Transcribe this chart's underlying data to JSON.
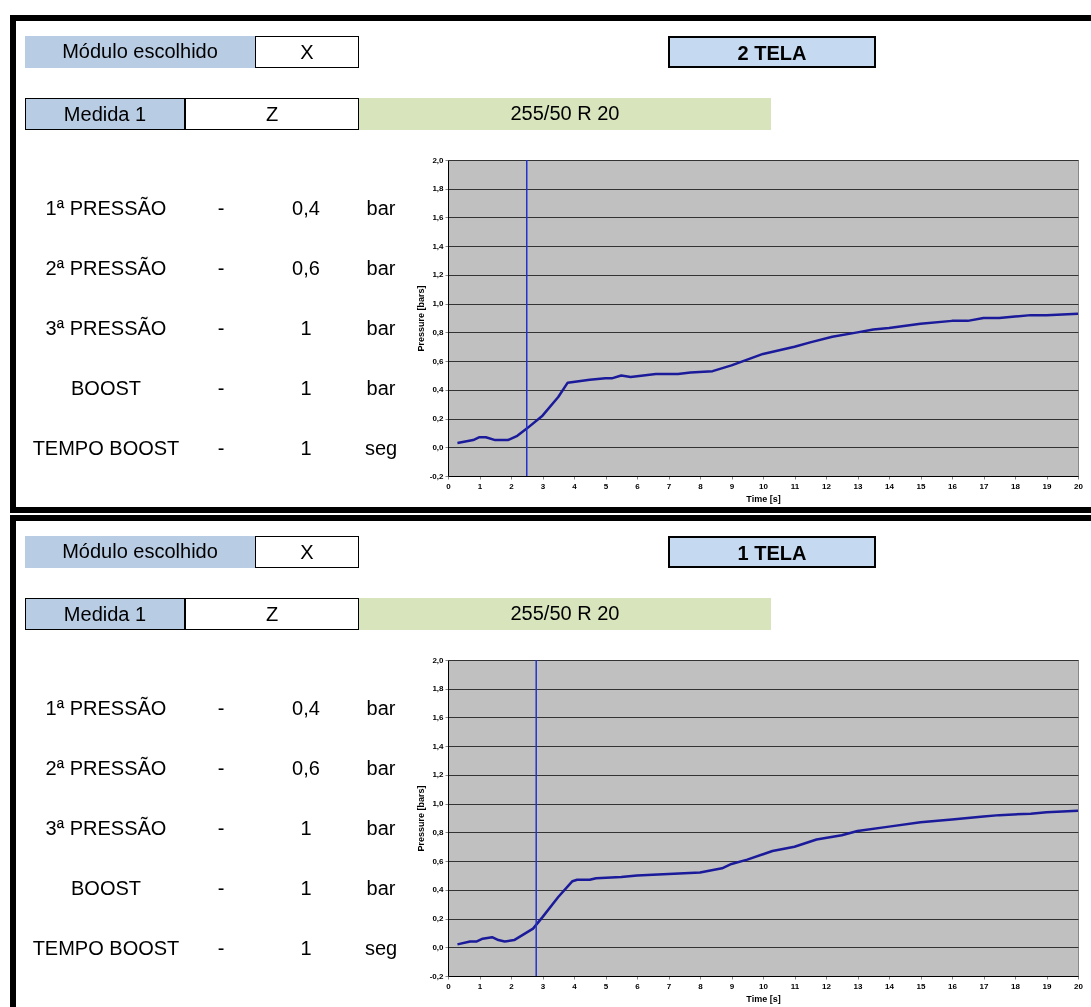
{
  "chart_data": [
    {
      "type": "other",
      "annotations": [
        "Módulo escolhido",
        "X",
        "2 TELA",
        "Medida 1",
        "Z",
        "255/50 R 20",
        "1ª PRESSÃO",
        "-",
        "0,4",
        "bar",
        "2ª PRESSÃO",
        "-",
        "0,6",
        "bar",
        "3ª PRESSÃO",
        "-",
        "1",
        "bar",
        "BOOST",
        "-",
        "1",
        "bar",
        "TEMPO BOOST",
        "-",
        "1",
        "seg"
      ]
    },
    {
      "type": "line",
      "xlabel": "Time [s]",
      "ylabel": "Pressure [bars]",
      "xlim": [
        0,
        20
      ],
      "xticks": [
        0,
        1,
        2,
        3,
        4,
        5,
        6,
        7,
        8,
        9,
        10,
        11,
        12,
        13,
        14,
        15,
        16,
        17,
        18,
        19,
        20
      ],
      "ylim": [
        -0.2,
        2
      ],
      "yticks": [
        {
          "value": -0.2,
          "label": "-0,2"
        },
        {
          "value": 0,
          "label": "0,0"
        },
        {
          "value": 0.2,
          "label": "0,2"
        },
        {
          "value": 0.4,
          "label": "0,4"
        },
        {
          "value": 0.6,
          "label": "0,6"
        },
        {
          "value": 0.8,
          "label": "0,8"
        },
        {
          "value": 1,
          "label": "1,0"
        },
        {
          "value": 1.2,
          "label": "1,2"
        },
        {
          "value": 1.4,
          "label": "1,4"
        },
        {
          "value": 1.6,
          "label": "1,6"
        },
        {
          "value": 1.8,
          "label": "1,8"
        },
        {
          "value": 2,
          "label": "2,0"
        }
      ],
      "grid": "y",
      "marker": "none",
      "line_style": "solid",
      "ref_lines": [
        {
          "axis": "x",
          "value": 2.5,
          "color": "#2233cc"
        }
      ],
      "series": [
        {
          "color": "#1a1a9a",
          "x": [
            0.3,
            0.8,
            1,
            1.2,
            1.5,
            1.9,
            2.2,
            2.5,
            3,
            3.5,
            3.8,
            4.5,
            5,
            5.2,
            5.5,
            5.8,
            6.2,
            6.6,
            7,
            7.3,
            7.7,
            8.4,
            9,
            9.5,
            10,
            11,
            11.5,
            12.2,
            13,
            13.5,
            14,
            15,
            16,
            16.5,
            17,
            17.5,
            18,
            18.5,
            19,
            20
          ],
          "values": [
            0.03,
            0.05,
            0.07,
            0.07,
            0.05,
            0.05,
            0.08,
            0.13,
            0.22,
            0.35,
            0.45,
            0.47,
            0.48,
            0.48,
            0.5,
            0.49,
            0.5,
            0.51,
            0.51,
            0.51,
            0.52,
            0.53,
            0.57,
            0.61,
            0.65,
            0.7,
            0.73,
            0.77,
            0.8,
            0.82,
            0.83,
            0.86,
            0.88,
            0.88,
            0.9,
            0.9,
            0.91,
            0.92,
            0.92,
            0.93
          ]
        }
      ]
    },
    {
      "type": "other",
      "annotations": [
        "Módulo escolhido",
        "X",
        "1 TELA",
        "Medida 1",
        "Z",
        "255/50 R 20",
        "1ª PRESSÃO",
        "-",
        "0,4",
        "bar",
        "2ª PRESSÃO",
        "-",
        "0,6",
        "bar",
        "3ª PRESSÃO",
        "-",
        "1",
        "bar",
        "BOOST",
        "-",
        "1",
        "bar",
        "TEMPO BOOST",
        "-",
        "1",
        "seg"
      ]
    },
    {
      "type": "line",
      "xlabel": "Time [s]",
      "ylabel": "Pressure [bars]",
      "xlim": [
        0,
        20
      ],
      "xticks": [
        0,
        1,
        2,
        3,
        4,
        5,
        6,
        7,
        8,
        9,
        10,
        11,
        12,
        13,
        14,
        15,
        16,
        17,
        18,
        19,
        20
      ],
      "ylim": [
        -0.2,
        2
      ],
      "yticks": [
        {
          "value": -0.2,
          "label": "-0,2"
        },
        {
          "value": 0,
          "label": "0,0"
        },
        {
          "value": 0.2,
          "label": "0,2"
        },
        {
          "value": 0.4,
          "label": "0,4"
        },
        {
          "value": 0.6,
          "label": "0,6"
        },
        {
          "value": 0.8,
          "label": "0,8"
        },
        {
          "value": 1,
          "label": "1,0"
        },
        {
          "value": 1.2,
          "label": "1,2"
        },
        {
          "value": 1.4,
          "label": "1,4"
        },
        {
          "value": 1.6,
          "label": "1,6"
        },
        {
          "value": 1.8,
          "label": "1,8"
        },
        {
          "value": 2,
          "label": "2,0"
        }
      ],
      "grid": "y",
      "marker": "none",
      "line_style": "solid",
      "ref_lines": [
        {
          "axis": "x",
          "value": 2.8,
          "color": "#2233cc"
        }
      ],
      "series": [
        {
          "color": "#1a1a9a",
          "x": [
            0.3,
            0.7,
            0.9,
            1.1,
            1.4,
            1.6,
            1.8,
            2.1,
            2.4,
            2.7,
            3,
            3.5,
            3.95,
            4.1,
            4.5,
            4.7,
            5.5,
            6,
            7,
            8,
            8.7,
            9,
            9.5,
            10.3,
            11,
            11.7,
            12.5,
            13,
            14,
            15,
            16,
            17,
            17.5,
            18.5,
            19,
            20
          ],
          "values": [
            0.02,
            0.04,
            0.04,
            0.06,
            0.07,
            0.05,
            0.04,
            0.05,
            0.09,
            0.13,
            0.21,
            0.35,
            0.46,
            0.47,
            0.47,
            0.48,
            0.49,
            0.5,
            0.51,
            0.52,
            0.55,
            0.58,
            0.61,
            0.67,
            0.7,
            0.75,
            0.78,
            0.81,
            0.84,
            0.87,
            0.89,
            0.91,
            0.92,
            0.93,
            0.94,
            0.95
          ]
        }
      ]
    }
  ]
}
